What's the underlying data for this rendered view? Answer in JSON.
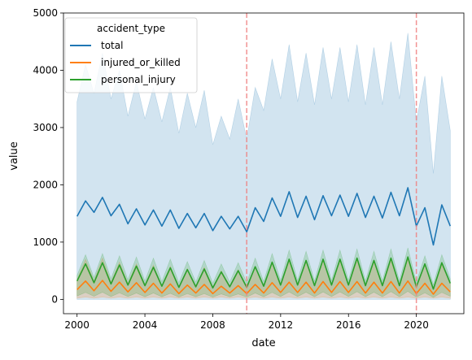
{
  "chart_data": {
    "type": "line",
    "xlabel": "date",
    "ylabel": "value",
    "xlim": [
      1999.2,
      2022.8
    ],
    "ylim": [
      -250,
      5000
    ],
    "x_ticks": [
      2000,
      2004,
      2008,
      2012,
      2016,
      2020
    ],
    "y_ticks": [
      0,
      1000,
      2000,
      3000,
      4000,
      5000
    ],
    "legend": {
      "title": "accident_type",
      "placement": "top-left"
    },
    "vlines": [
      {
        "x": 2010.0,
        "color": "#f08080",
        "style": "dashed"
      },
      {
        "x": 2020.0,
        "color": "#f08080",
        "style": "dashed"
      }
    ],
    "series": [
      {
        "name": "total",
        "color": "#1f77b4",
        "x_start": 2000,
        "x_step": 0.5,
        "values": [
          1450,
          1720,
          1520,
          1780,
          1460,
          1660,
          1320,
          1580,
          1300,
          1560,
          1280,
          1560,
          1240,
          1500,
          1250,
          1500,
          1200,
          1450,
          1230,
          1450,
          1180,
          1600,
          1360,
          1770,
          1450,
          1880,
          1430,
          1800,
          1390,
          1810,
          1460,
          1820,
          1450,
          1850,
          1430,
          1800,
          1420,
          1870,
          1460,
          1950,
          1280,
          1600,
          950,
          1650,
          1280
        ],
        "band_upper": [
          3450,
          4100,
          3600,
          4300,
          3500,
          4000,
          3200,
          3800,
          3150,
          3700,
          3100,
          3700,
          2900,
          3600,
          3000,
          3650,
          2700,
          3200,
          2800,
          3500,
          2800,
          3700,
          3300,
          4200,
          3500,
          4450,
          3450,
          4300,
          3400,
          4400,
          3500,
          4400,
          3450,
          4450,
          3400,
          4400,
          3400,
          4500,
          3500,
          4650,
          3100,
          3900,
          2200,
          3900,
          2950
        ],
        "band_lower": [
          0,
          0,
          0,
          0,
          0,
          0,
          0,
          0,
          0,
          0,
          0,
          0,
          0,
          0,
          0,
          0,
          0,
          0,
          0,
          0,
          0,
          0,
          0,
          0,
          0,
          0,
          0,
          0,
          0,
          0,
          0,
          0,
          0,
          0,
          0,
          0,
          0,
          0,
          0,
          0,
          0,
          0,
          0,
          0,
          0
        ]
      },
      {
        "name": "injured_or_killed",
        "color": "#ff7f0e",
        "x_start": 2000,
        "x_step": 0.5,
        "values": [
          170,
          320,
          150,
          330,
          140,
          300,
          130,
          290,
          120,
          280,
          110,
          270,
          100,
          250,
          110,
          260,
          100,
          230,
          110,
          240,
          100,
          260,
          110,
          290,
          120,
          300,
          120,
          300,
          110,
          310,
          120,
          310,
          120,
          310,
          110,
          300,
          110,
          310,
          110,
          320,
          100,
          280,
          90,
          280,
          130
        ],
        "band_upper": [
          350,
          700,
          320,
          720,
          300,
          650,
          280,
          620,
          260,
          600,
          240,
          580,
          220,
          540,
          240,
          560,
          220,
          500,
          240,
          520,
          220,
          560,
          240,
          620,
          260,
          650,
          260,
          650,
          240,
          670,
          260,
          670,
          260,
          670,
          240,
          650,
          240,
          670,
          240,
          700,
          220,
          600,
          200,
          600,
          280
        ],
        "band_lower": [
          20,
          40,
          20,
          40,
          20,
          40,
          20,
          40,
          20,
          40,
          20,
          40,
          20,
          40,
          20,
          40,
          20,
          40,
          20,
          40,
          20,
          40,
          20,
          40,
          20,
          40,
          20,
          40,
          20,
          40,
          20,
          40,
          20,
          40,
          20,
          40,
          20,
          40,
          20,
          40,
          20,
          40,
          20,
          40,
          20
        ]
      },
      {
        "name": "personal_injury",
        "color": "#2ca02c",
        "x_start": 2000,
        "x_step": 0.5,
        "values": [
          320,
          620,
          290,
          640,
          270,
          600,
          250,
          580,
          240,
          560,
          230,
          550,
          210,
          520,
          220,
          530,
          200,
          480,
          220,
          500,
          210,
          570,
          230,
          650,
          250,
          700,
          250,
          680,
          240,
          700,
          250,
          700,
          250,
          720,
          240,
          680,
          240,
          720,
          240,
          740,
          220,
          620,
          180,
          640,
          280
        ],
        "band_upper": [
          420,
          780,
          380,
          800,
          360,
          760,
          340,
          740,
          320,
          720,
          310,
          700,
          290,
          660,
          300,
          680,
          280,
          620,
          300,
          640,
          290,
          720,
          310,
          800,
          330,
          860,
          330,
          840,
          320,
          860,
          330,
          860,
          330,
          880,
          320,
          840,
          320,
          880,
          320,
          900,
          300,
          760,
          260,
          780,
          360
        ],
        "band_lower": [
          60,
          120,
          55,
          125,
          50,
          115,
          50,
          110,
          45,
          110,
          45,
          105,
          40,
          100,
          45,
          100,
          40,
          95,
          45,
          95,
          40,
          110,
          45,
          120,
          50,
          130,
          50,
          125,
          45,
          130,
          50,
          130,
          50,
          135,
          45,
          125,
          45,
          135,
          45,
          140,
          40,
          115,
          35,
          120,
          55
        ]
      }
    ]
  }
}
